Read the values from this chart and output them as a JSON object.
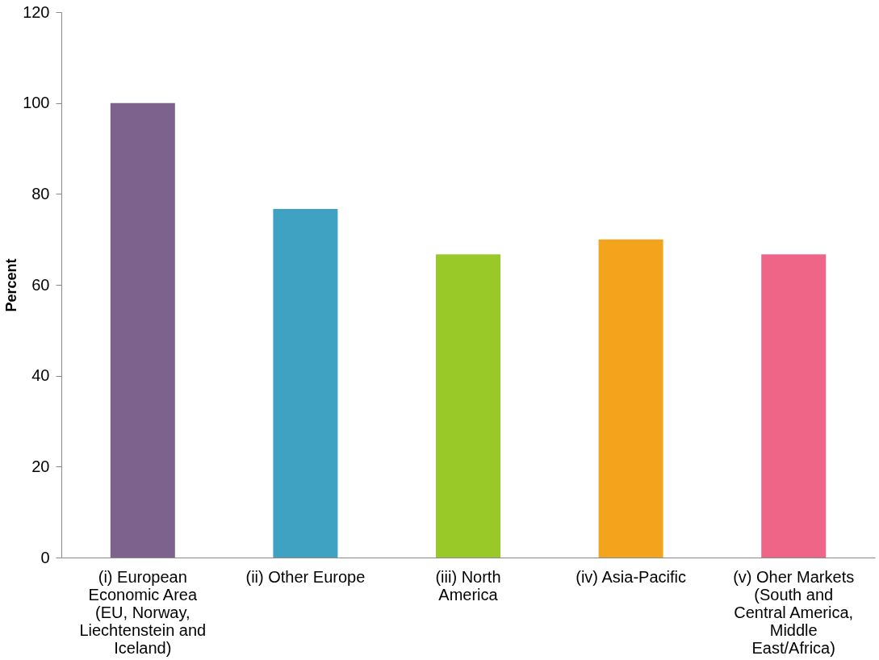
{
  "chart_data": {
    "type": "bar",
    "ylabel": "Percent",
    "categories": [
      "(i) European Economic Area (EU, Norway, Liechtenstein and Iceland)",
      "(ii) Other Europe",
      "(iii) North America",
      "(iv) Asia-Pacific",
      "(v) Oher Markets (South and Central America, Middle East/Africa)"
    ],
    "values": [
      100,
      76.7,
      66.7,
      70,
      66.7
    ],
    "colors": [
      "#7d628e",
      "#3fa2c3",
      "#98c928",
      "#f4a41c",
      "#ef6588"
    ],
    "ylim": [
      0,
      120
    ],
    "yticks": [
      0,
      20,
      40,
      60,
      80,
      100,
      120
    ],
    "grid": false
  }
}
